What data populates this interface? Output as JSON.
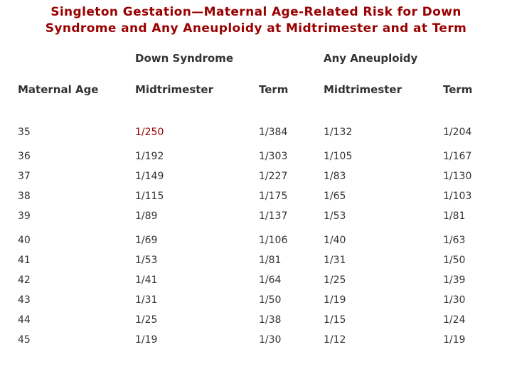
{
  "title_lines": [
    "Singleton Gestation—Maternal Age-Related Risk for Down",
    "Syndrome and Any Aneuploidy at Midtrimester and at Term"
  ],
  "colors": {
    "accent_red": "#990000",
    "table_text": "#333333",
    "background": "#ffffff"
  },
  "table": {
    "group_headers": [
      "Down Syndrome",
      "Any Aneuploidy"
    ],
    "column_headers": [
      "Maternal Age",
      "Midtrimester",
      "Term",
      "Midtrimester",
      "Term"
    ],
    "rows": [
      {
        "age": "35",
        "ds_mid": "1/250",
        "ds_term": "1/384",
        "aa_mid": "1/132",
        "aa_term": "1/204",
        "accent_cell": "ds_mid"
      },
      {
        "age": "36",
        "ds_mid": "1/192",
        "ds_term": "1/303",
        "aa_mid": "1/105",
        "aa_term": "1/167",
        "group_break": true
      },
      {
        "age": "37",
        "ds_mid": "1/149",
        "ds_term": "1/227",
        "aa_mid": "1/83",
        "aa_term": "1/130"
      },
      {
        "age": "38",
        "ds_mid": "1/115",
        "ds_term": "1/175",
        "aa_mid": "1/65",
        "aa_term": "1/103"
      },
      {
        "age": "39",
        "ds_mid": "1/89",
        "ds_term": "1/137",
        "aa_mid": "1/53",
        "aa_term": "1/81"
      },
      {
        "age": "40",
        "ds_mid": "1/69",
        "ds_term": "1/106",
        "aa_mid": "1/40",
        "aa_term": "1/63",
        "group_break": true
      },
      {
        "age": "41",
        "ds_mid": "1/53",
        "ds_term": "1/81",
        "aa_mid": "1/31",
        "aa_term": "1/50"
      },
      {
        "age": "42",
        "ds_mid": "1/41",
        "ds_term": "1/64",
        "aa_mid": "1/25",
        "aa_term": "1/39"
      },
      {
        "age": "43",
        "ds_mid": "1/31",
        "ds_term": "1/50",
        "aa_mid": "1/19",
        "aa_term": "1/30"
      },
      {
        "age": "44",
        "ds_mid": "1/25",
        "ds_term": "1/38",
        "aa_mid": "1/15",
        "aa_term": "1/24"
      },
      {
        "age": "45",
        "ds_mid": "1/19",
        "ds_term": "1/30",
        "aa_mid": "1/12",
        "aa_term": "1/19"
      }
    ]
  }
}
